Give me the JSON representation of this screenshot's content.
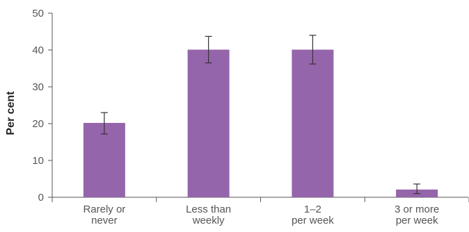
{
  "chart_data": {
    "type": "bar",
    "categories": [
      [
        "Rarely or",
        "never"
      ],
      [
        "Less than",
        "weekly"
      ],
      [
        "1–2",
        "per week"
      ],
      [
        "3 or more",
        "per week"
      ]
    ],
    "values": [
      20.2,
      40.1,
      40.1,
      2.1
    ],
    "error_bars": [
      {
        "low": 17.2,
        "high": 23.0
      },
      {
        "low": 36.5,
        "high": 43.7
      },
      {
        "low": 36.2,
        "high": 44.0
      },
      {
        "low": 1.0,
        "high": 3.6
      }
    ],
    "xlabel": "",
    "ylabel": "Per cent",
    "ylim": [
      0,
      50
    ],
    "yticks": [
      0,
      10,
      20,
      30,
      40,
      50
    ],
    "grid": false,
    "colors": {
      "bar": "#9565ab",
      "axis": "#555555",
      "error": "#333333"
    }
  }
}
